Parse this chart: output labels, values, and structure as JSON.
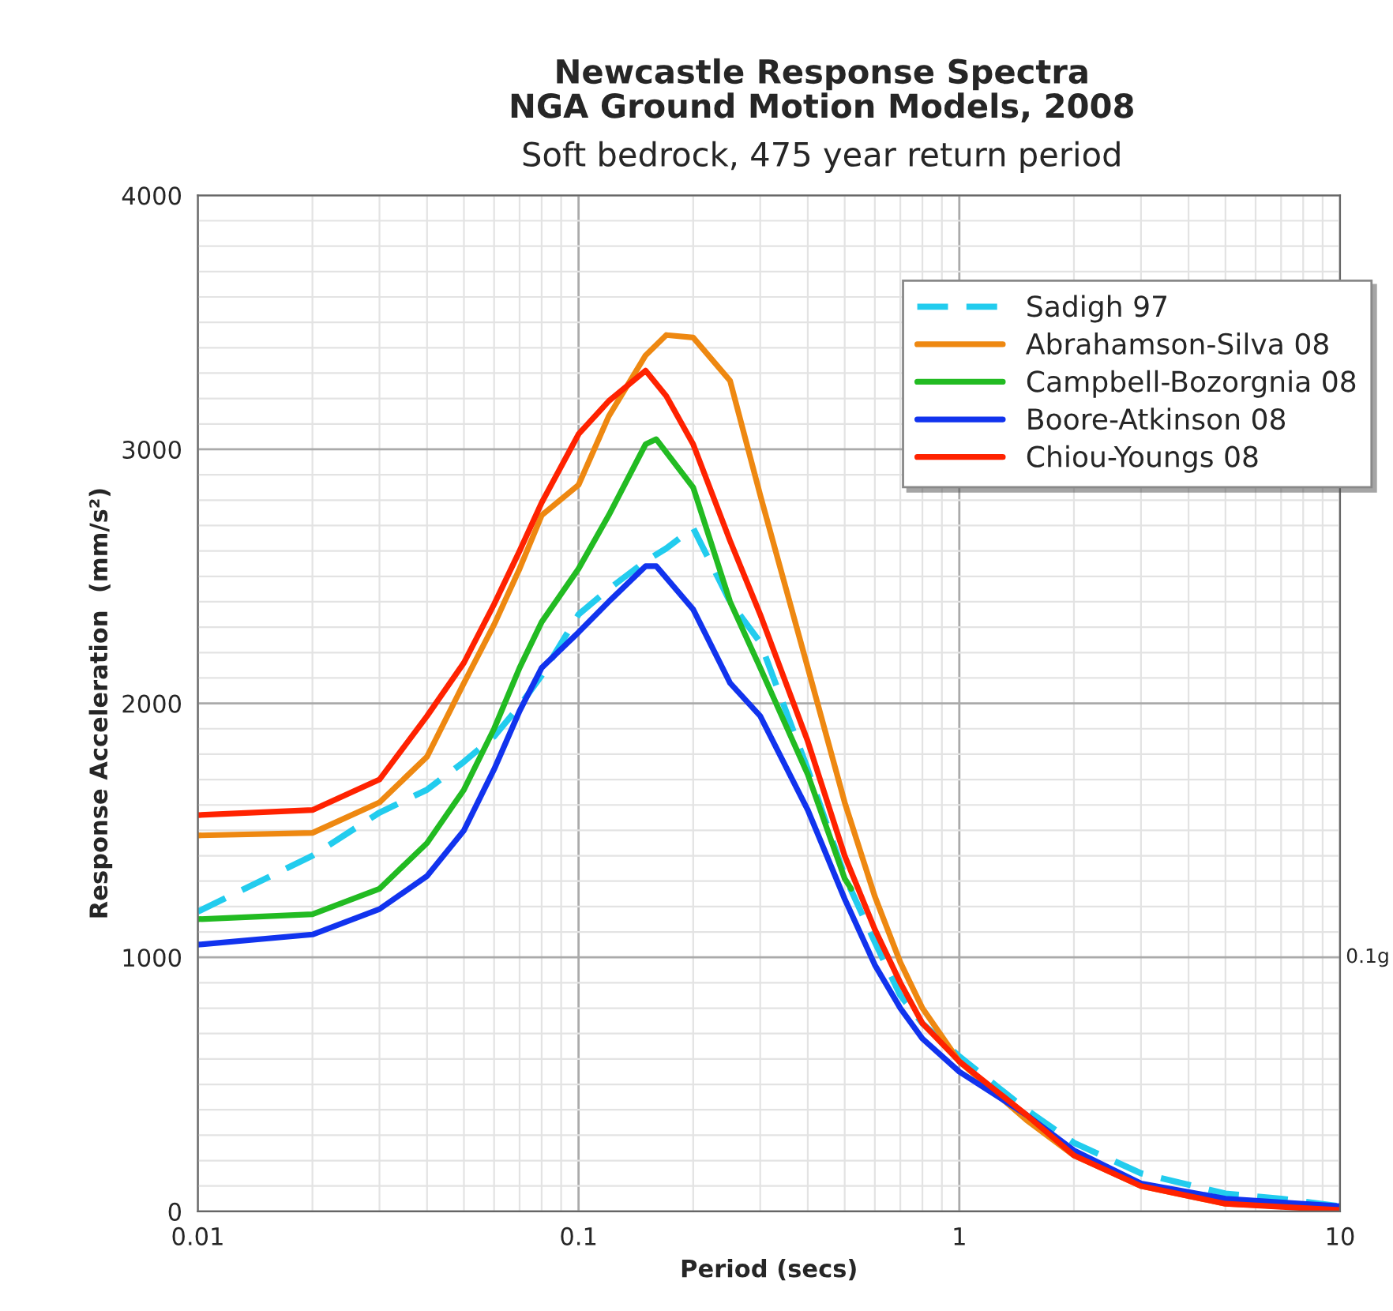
{
  "chart_data": {
    "type": "line",
    "title": "Newcastle Response Spectra\nNGA Ground Motion Models, 2008",
    "subtitle": "Soft bedrock, 475 year return period",
    "xlabel": "Period (secs)",
    "ylabel": "Response Acceleration  (mm/s²)",
    "log": "x",
    "xlim": [
      0.01,
      10
    ],
    "xticks": [
      0.01,
      0.1,
      1,
      10
    ],
    "ylim": [
      0,
      4000
    ],
    "yticks": [
      0,
      1000,
      2000,
      3000,
      4000
    ],
    "grid": true,
    "legend": "top right",
    "annotations": [
      "0.1g"
    ],
    "series": [
      {
        "name": "Sadigh 97",
        "color": "#22ccee",
        "line_style": "dashed",
        "x": [
          0.01,
          0.02,
          0.03,
          0.04,
          0.05,
          0.06,
          0.07,
          0.08,
          0.1,
          0.12,
          0.15,
          0.17,
          0.2,
          0.25,
          0.3,
          0.4,
          0.5,
          0.6,
          0.7,
          0.8,
          1,
          1.5,
          2,
          3,
          5,
          7,
          10
        ],
        "values": [
          1180,
          1400,
          1570,
          1660,
          1770,
          1870,
          1990,
          2110,
          2350,
          2450,
          2560,
          2610,
          2690,
          2400,
          2240,
          1740,
          1320,
          1060,
          850,
          740,
          610,
          400,
          270,
          150,
          70,
          50,
          20
        ]
      },
      {
        "name": "Abrahamson-Silva 08",
        "color": "#ee8811",
        "x": [
          0.01,
          0.02,
          0.03,
          0.04,
          0.05,
          0.06,
          0.07,
          0.08,
          0.1,
          0.12,
          0.15,
          0.17,
          0.2,
          0.25,
          0.3,
          0.4,
          0.5,
          0.6,
          0.7,
          0.8,
          1,
          1.5,
          2,
          3,
          5,
          10
        ],
        "values": [
          1480,
          1490,
          1610,
          1790,
          2080,
          2310,
          2530,
          2740,
          2860,
          3130,
          3370,
          3450,
          3440,
          3270,
          2820,
          2140,
          1610,
          1240,
          980,
          800,
          590,
          360,
          220,
          100,
          30,
          10
        ]
      },
      {
        "name": "Campbell-Bozorgnia 08",
        "color": "#22bb22",
        "x": [
          0.01,
          0.02,
          0.03,
          0.04,
          0.05,
          0.06,
          0.07,
          0.08,
          0.1,
          0.12,
          0.15,
          0.16,
          0.2,
          0.25,
          0.3,
          0.4,
          0.5,
          0.52
        ],
        "values": [
          1150,
          1170,
          1270,
          1450,
          1660,
          1900,
          2140,
          2320,
          2530,
          2740,
          3020,
          3040,
          2850,
          2400,
          2140,
          1720,
          1310,
          1270
        ]
      },
      {
        "name": "Boore-Atkinson 08",
        "color": "#1133ee",
        "x": [
          0.01,
          0.02,
          0.03,
          0.04,
          0.05,
          0.06,
          0.07,
          0.08,
          0.1,
          0.12,
          0.15,
          0.16,
          0.2,
          0.25,
          0.3,
          0.4,
          0.5,
          0.6,
          0.7,
          0.8,
          1,
          1.5,
          2,
          3,
          5,
          10
        ],
        "values": [
          1050,
          1090,
          1190,
          1320,
          1500,
          1740,
          1970,
          2140,
          2280,
          2400,
          2540,
          2540,
          2370,
          2080,
          1950,
          1580,
          1230,
          970,
          800,
          680,
          550,
          380,
          240,
          110,
          50,
          20
        ]
      },
      {
        "name": "Chiou-Youngs 08",
        "color": "#ff2200",
        "x": [
          0.01,
          0.02,
          0.03,
          0.04,
          0.05,
          0.06,
          0.07,
          0.08,
          0.1,
          0.12,
          0.15,
          0.17,
          0.2,
          0.25,
          0.3,
          0.4,
          0.5,
          0.6,
          0.7,
          0.8,
          1,
          1.5,
          2,
          3,
          5,
          10
        ],
        "values": [
          1560,
          1580,
          1700,
          1950,
          2160,
          2390,
          2600,
          2790,
          3060,
          3190,
          3310,
          3210,
          3020,
          2640,
          2350,
          1850,
          1400,
          1110,
          900,
          740,
          590,
          380,
          220,
          100,
          30,
          5
        ]
      }
    ]
  }
}
